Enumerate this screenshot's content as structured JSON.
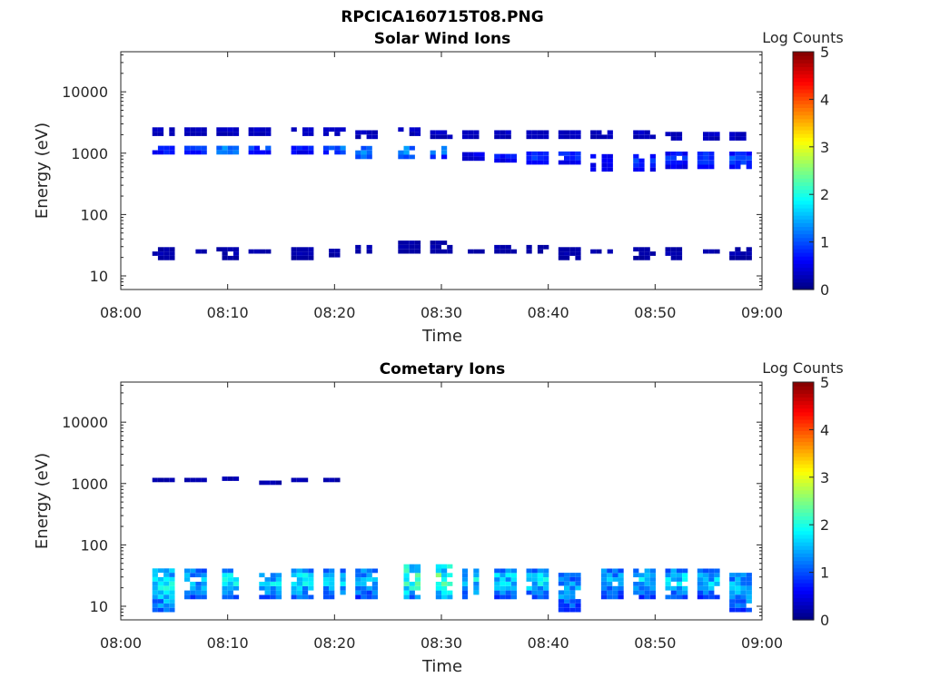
{
  "figure_title": "RPCICA160715T08.PNG",
  "chart_data": [
    {
      "type": "heatmap",
      "title": "Solar Wind Ions",
      "xlabel": "Time",
      "ylabel": "Energy (eV)",
      "x_ticks": [
        "08:00",
        "08:10",
        "08:20",
        "08:30",
        "08:40",
        "08:50",
        "09:00"
      ],
      "xlim": [
        "08:00",
        "09:00"
      ],
      "y_scale": "log",
      "ylim": [
        6,
        45000
      ],
      "y_ticks": [
        "10",
        "100",
        "1000",
        "10000"
      ],
      "colorbar": {
        "label": "Log Counts",
        "range": [
          0,
          5
        ],
        "ticks": [
          "0",
          "1",
          "2",
          "3",
          "4",
          "5"
        ],
        "colormap": "jet"
      },
      "clusters": [
        {
          "time": "08:04",
          "bands": [
            {
              "e": [
                1900,
                2600
              ],
              "v": 0.3
            },
            {
              "e": [
                950,
                1300
              ],
              "v": 0.8
            },
            {
              "e": [
                18,
                28
              ],
              "v": 0.2
            }
          ]
        },
        {
          "time": "08:07",
          "bands": [
            {
              "e": [
                1900,
                2600
              ],
              "v": 0.3
            },
            {
              "e": [
                950,
                1300
              ],
              "v": 0.9
            },
            {
              "e": [
                23,
                28
              ],
              "v": 0.2
            }
          ]
        },
        {
          "time": "08:10",
          "bands": [
            {
              "e": [
                1900,
                2600
              ],
              "v": 0.3
            },
            {
              "e": [
                950,
                1300
              ],
              "v": 1.1
            },
            {
              "e": [
                18,
                28
              ],
              "v": 0.2
            }
          ]
        },
        {
          "time": "08:13",
          "bands": [
            {
              "e": [
                1900,
                2600
              ],
              "v": 0.3
            },
            {
              "e": [
                950,
                1300
              ],
              "v": 0.8
            },
            {
              "e": [
                23,
                28
              ],
              "v": 0.2
            }
          ]
        },
        {
          "time": "08:17",
          "bands": [
            {
              "e": [
                1900,
                2600
              ],
              "v": 0.3
            },
            {
              "e": [
                950,
                1300
              ],
              "v": 0.6
            },
            {
              "e": [
                18,
                28
              ],
              "v": 0.2
            }
          ]
        },
        {
          "time": "08:20",
          "bands": [
            {
              "e": [
                1900,
                2600
              ],
              "v": 0.3
            },
            {
              "e": [
                950,
                1300
              ],
              "v": 1.0
            },
            {
              "e": [
                20,
                28
              ],
              "v": 0.2
            }
          ]
        },
        {
          "time": "08:23",
          "bands": [
            {
              "e": [
                1700,
                2500
              ],
              "v": 0.3
            },
            {
              "e": [
                800,
                1300
              ],
              "v": 1.2
            },
            {
              "e": [
                23,
                32
              ],
              "v": 0.2
            }
          ]
        },
        {
          "time": "08:27",
          "bands": [
            {
              "e": [
                1900,
                2600
              ],
              "v": 0.3
            },
            {
              "e": [
                800,
                1300
              ],
              "v": 1.2
            },
            {
              "e": [
                23,
                36
              ],
              "v": 0.2
            }
          ]
        },
        {
          "time": "08:30",
          "bands": [
            {
              "e": [
                1700,
                2500
              ],
              "v": 0.3
            },
            {
              "e": [
                800,
                1300
              ],
              "v": 1.0
            },
            {
              "e": [
                23,
                36
              ],
              "v": 0.2
            }
          ]
        },
        {
          "time": "08:33",
          "bands": [
            {
              "e": [
                1700,
                2200
              ],
              "v": 0.3
            },
            {
              "e": [
                750,
                1000
              ],
              "v": 0.5
            },
            {
              "e": [
                23,
                28
              ],
              "v": 0.2
            }
          ]
        },
        {
          "time": "08:36",
          "bands": [
            {
              "e": [
                1700,
                2300
              ],
              "v": 0.3
            },
            {
              "e": [
                700,
                1050
              ],
              "v": 0.6
            },
            {
              "e": [
                23,
                32
              ],
              "v": 0.2
            }
          ]
        },
        {
          "time": "08:39",
          "bands": [
            {
              "e": [
                1700,
                2300
              ],
              "v": 0.3
            },
            {
              "e": [
                650,
                1000
              ],
              "v": 0.7
            },
            {
              "e": [
                23,
                32
              ],
              "v": 0.2
            }
          ]
        },
        {
          "time": "08:42",
          "bands": [
            {
              "e": [
                1700,
                2200
              ],
              "v": 0.3
            },
            {
              "e": [
                650,
                1000
              ],
              "v": 0.7
            },
            {
              "e": [
                18,
                28
              ],
              "v": 0.2
            }
          ]
        },
        {
          "time": "08:45",
          "bands": [
            {
              "e": [
                1700,
                2200
              ],
              "v": 0.3
            },
            {
              "e": [
                500,
                950
              ],
              "v": 0.6
            },
            {
              "e": [
                23,
                28
              ],
              "v": 0.2
            }
          ]
        },
        {
          "time": "08:49",
          "bands": [
            {
              "e": [
                1700,
                2300
              ],
              "v": 0.3
            },
            {
              "e": [
                500,
                1000
              ],
              "v": 0.7
            },
            {
              "e": [
                18,
                28
              ],
              "v": 0.2
            }
          ]
        },
        {
          "time": "08:52",
          "bands": [
            {
              "e": [
                1600,
                2300
              ],
              "v": 0.3
            },
            {
              "e": [
                550,
                1000
              ],
              "v": 0.7
            },
            {
              "e": [
                18,
                28
              ],
              "v": 0.2
            }
          ]
        },
        {
          "time": "08:55",
          "bands": [
            {
              "e": [
                1600,
                2300
              ],
              "v": 0.3
            },
            {
              "e": [
                550,
                1000
              ],
              "v": 0.8
            },
            {
              "e": [
                23,
                28
              ],
              "v": 0.2
            }
          ]
        },
        {
          "time": "08:58",
          "bands": [
            {
              "e": [
                1600,
                2300
              ],
              "v": 0.3
            },
            {
              "e": [
                550,
                1100
              ],
              "v": 0.8
            },
            {
              "e": [
                18,
                28
              ],
              "v": 0.2
            }
          ]
        }
      ]
    },
    {
      "type": "heatmap",
      "title": "Cometary Ions",
      "xlabel": "Time",
      "ylabel": "Energy (eV)",
      "x_ticks": [
        "08:00",
        "08:10",
        "08:20",
        "08:30",
        "08:40",
        "08:50",
        "09:00"
      ],
      "xlim": [
        "08:00",
        "09:00"
      ],
      "y_scale": "log",
      "ylim": [
        6,
        45000
      ],
      "y_ticks": [
        "10",
        "100",
        "1000",
        "10000"
      ],
      "colorbar": {
        "label": "Log Counts",
        "range": [
          0,
          5
        ],
        "ticks": [
          "0",
          "1",
          "2",
          "3",
          "4",
          "5"
        ],
        "colormap": "jet"
      },
      "clusters": [
        {
          "time": "08:04",
          "bands": [
            {
              "e": [
                1050,
                1150
              ],
              "v": 0.2
            },
            {
              "e": [
                8,
                40
              ],
              "v": 1.5
            }
          ]
        },
        {
          "time": "08:07",
          "bands": [
            {
              "e": [
                1050,
                1150
              ],
              "v": 0.2
            },
            {
              "e": [
                13,
                42
              ],
              "v": 1.3
            }
          ]
        },
        {
          "time": "08:10",
          "bands": [
            {
              "e": [
                1100,
                1200
              ],
              "v": 0.2
            },
            {
              "e": [
                13,
                42
              ],
              "v": 1.5
            }
          ]
        },
        {
          "time": "08:14",
          "bands": [
            {
              "e": [
                950,
                1150
              ],
              "v": 0.2
            },
            {
              "e": [
                13,
                36
              ],
              "v": 1.4
            }
          ]
        },
        {
          "time": "08:17",
          "bands": [
            {
              "e": [
                1050,
                1150
              ],
              "v": 0.2
            },
            {
              "e": [
                13,
                38
              ],
              "v": 1.5
            }
          ]
        },
        {
          "time": "08:20",
          "bands": [
            {
              "e": [
                1050,
                1150
              ],
              "v": 0.2
            },
            {
              "e": [
                13,
                42
              ],
              "v": 1.3
            }
          ]
        },
        {
          "time": "08:23",
          "bands": [
            {
              "e": [
                13,
                42
              ],
              "v": 1.3
            }
          ]
        },
        {
          "time": "08:27",
          "bands": [
            {
              "e": [
                13,
                45
              ],
              "v": 1.8
            }
          ]
        },
        {
          "time": "08:30",
          "bands": [
            {
              "e": [
                13,
                45
              ],
              "v": 1.8
            }
          ]
        },
        {
          "time": "08:33",
          "bands": [
            {
              "e": [
                13,
                42
              ],
              "v": 1.4
            }
          ]
        },
        {
          "time": "08:36",
          "bands": [
            {
              "e": [
                13,
                42
              ],
              "v": 1.4
            }
          ]
        },
        {
          "time": "08:39",
          "bands": [
            {
              "e": [
                13,
                42
              ],
              "v": 1.4
            }
          ]
        },
        {
          "time": "08:42",
          "bands": [
            {
              "e": [
                8,
                38
              ],
              "v": 1.2
            }
          ]
        },
        {
          "time": "08:46",
          "bands": [
            {
              "e": [
                13,
                38
              ],
              "v": 1.3
            }
          ]
        },
        {
          "time": "08:49",
          "bands": [
            {
              "e": [
                13,
                38
              ],
              "v": 1.3
            }
          ]
        },
        {
          "time": "08:52",
          "bands": [
            {
              "e": [
                13,
                40
              ],
              "v": 1.4
            }
          ]
        },
        {
          "time": "08:55",
          "bands": [
            {
              "e": [
                13,
                38
              ],
              "v": 1.3
            }
          ]
        },
        {
          "time": "08:58",
          "bands": [
            {
              "e": [
                8,
                38
              ],
              "v": 1.3
            }
          ]
        }
      ]
    }
  ]
}
